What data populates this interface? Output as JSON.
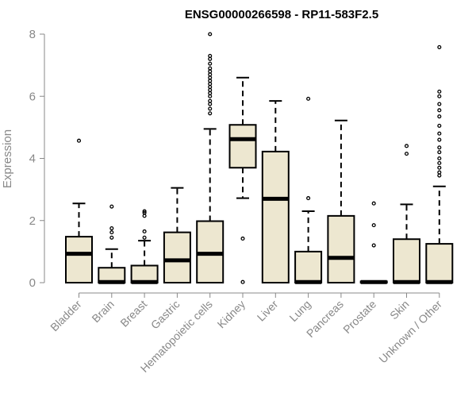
{
  "chart_data": {
    "type": "boxplot",
    "title": "ENSG00000266598 - RP11-583F2.5",
    "xlabel": "",
    "ylabel": "Expression",
    "ylim": [
      0,
      8
    ],
    "yticks": [
      0,
      2,
      4,
      6,
      8
    ],
    "grid": false,
    "legend": "none",
    "colors": {
      "box_fill": "#EDE7D0",
      "box_stroke": "#000000",
      "axis": "#888888"
    },
    "categories": [
      "Bladder",
      "Brain",
      "Breast",
      "Gastric",
      "Hematopoietic cells",
      "Kidney",
      "Liver",
      "Lung",
      "Pancreas",
      "Prostate",
      "Skin",
      "Unknown / Other"
    ],
    "boxes": [
      {
        "name": "Bladder",
        "whisker_low": 0,
        "q1": 0,
        "median": 0.93,
        "q3": 1.48,
        "whisker_high": 2.55,
        "outliers": [
          4.57
        ]
      },
      {
        "name": "Brain",
        "whisker_low": 0,
        "q1": 0,
        "median": 0.02,
        "q3": 0.48,
        "whisker_high": 1.08,
        "outliers": [
          1.45,
          1.62,
          1.75,
          2.45
        ]
      },
      {
        "name": "Breast",
        "whisker_low": 0,
        "q1": 0,
        "median": 0.02,
        "q3": 0.55,
        "whisker_high": 1.35,
        "outliers": [
          1.45,
          1.65,
          2.15,
          2.25,
          2.3
        ]
      },
      {
        "name": "Gastric",
        "whisker_low": 0,
        "q1": 0,
        "median": 0.72,
        "q3": 1.62,
        "whisker_high": 3.05,
        "outliers": []
      },
      {
        "name": "Hematopoietic cells",
        "whisker_low": 0,
        "q1": 0,
        "median": 0.93,
        "q3": 1.98,
        "whisker_high": 4.95,
        "outliers": [
          5.45,
          5.6,
          5.75,
          5.85,
          6.0,
          6.1,
          6.2,
          6.3,
          6.4,
          6.5,
          6.6,
          6.7,
          6.8,
          6.9,
          7.05,
          7.2,
          7.3,
          8.0
        ]
      },
      {
        "name": "Kidney",
        "whisker_low": 2.72,
        "q1": 3.7,
        "median": 4.62,
        "q3": 5.08,
        "whisker_high": 6.6,
        "outliers": [
          1.42,
          0.02
        ]
      },
      {
        "name": "Liver",
        "whisker_low": 0,
        "q1": 0,
        "median": 2.7,
        "q3": 4.22,
        "whisker_high": 5.85,
        "outliers": []
      },
      {
        "name": "Lung",
        "whisker_low": 0,
        "q1": 0,
        "median": 0.02,
        "q3": 1.0,
        "whisker_high": 2.3,
        "outliers": [
          2.72,
          5.92
        ]
      },
      {
        "name": "Pancreas",
        "whisker_low": 0,
        "q1": 0,
        "median": 0.8,
        "q3": 2.15,
        "whisker_high": 5.22,
        "outliers": []
      },
      {
        "name": "Prostate",
        "whisker_low": 0,
        "q1": 0,
        "median": 0.02,
        "q3": 0.04,
        "whisker_high": 0.05,
        "outliers": [
          1.2,
          1.85,
          2.55
        ]
      },
      {
        "name": "Skin",
        "whisker_low": 0,
        "q1": 0,
        "median": 0.02,
        "q3": 1.4,
        "whisker_high": 2.52,
        "outliers": [
          4.15,
          4.4
        ]
      },
      {
        "name": "Unknown / Other",
        "whisker_low": 0,
        "q1": 0,
        "median": 0.02,
        "q3": 1.25,
        "whisker_high": 3.1,
        "outliers": [
          3.45,
          3.55,
          3.7,
          3.85,
          4.0,
          4.2,
          4.35,
          4.6,
          4.8,
          5.05,
          5.35,
          5.55,
          5.75,
          6.0,
          6.15,
          7.58
        ]
      }
    ]
  }
}
